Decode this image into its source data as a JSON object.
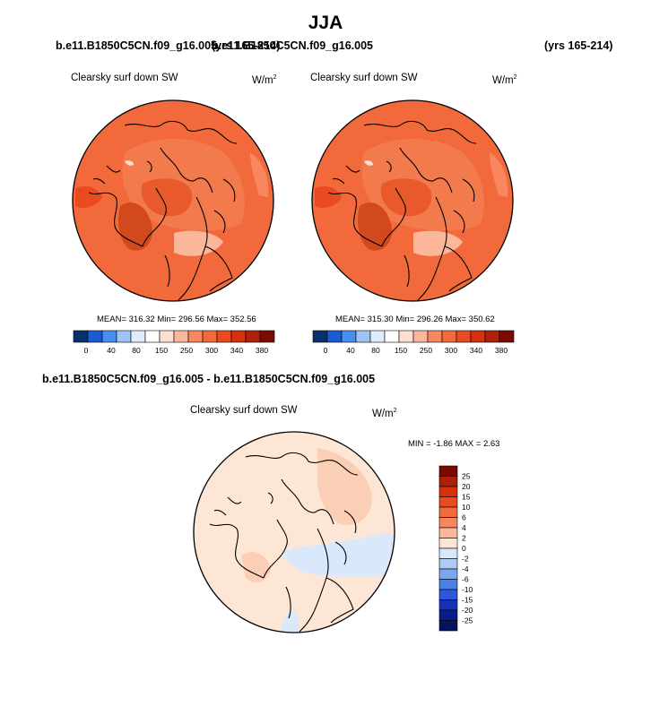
{
  "title": "JJA",
  "top_panels": [
    {
      "case": "b.e11.B1850C5CN.f09_g16.005",
      "years": "(yrs 165-214)",
      "variable": "Clearsky surf down SW",
      "units": "W/m",
      "units_exp": "2",
      "stats": "MEAN= 316.32  Min= 296.56  Max= 352.56"
    },
    {
      "case": "b.e11.B1850C5CN.f09_g16.005",
      "years": "(yrs 165-214)",
      "variable": "Clearsky surf down SW",
      "units": "W/m",
      "units_exp": "2",
      "stats": "MEAN= 315.30  Min= 296.26  Max= 350.62"
    }
  ],
  "abs_colorbar": {
    "labels": [
      "0",
      "40",
      "80",
      "150",
      "250",
      "300",
      "340",
      "380"
    ],
    "colors": [
      "#08306b",
      "#1c5bd6",
      "#4a8df0",
      "#9dc4f5",
      "#deebfb",
      "#ffffff",
      "#fde0cf",
      "#fbb79a",
      "#f8875f",
      "#f26a3c",
      "#ea4a1f",
      "#d6300d",
      "#b01f08",
      "#7a0b03"
    ]
  },
  "diff_panel": {
    "case": "b.e11.B1850C5CN.f09_g16.005 - b.e11.B1850C5CN.f09_g16.005",
    "variable": "Clearsky surf down SW",
    "units": "W/m",
    "units_exp": "2",
    "stats": "MIN =  -1.86 MAX =  2.63"
  },
  "diff_colorbar": {
    "labels": [
      "25",
      "20",
      "15",
      "10",
      "6",
      "4",
      "2",
      "0",
      "-2",
      "-4",
      "-6",
      "-10",
      "-15",
      "-20",
      "-25"
    ],
    "colors": [
      "#7a0b03",
      "#b01f08",
      "#d6300d",
      "#ea4a1f",
      "#f26a3c",
      "#f8875f",
      "#fbb79a",
      "#fde6d5",
      "#d9e9fb",
      "#aecbf5",
      "#7aa7ee",
      "#4a7fe6",
      "#2a56d8",
      "#1431b8",
      "#081d8a",
      "#061460"
    ]
  }
}
